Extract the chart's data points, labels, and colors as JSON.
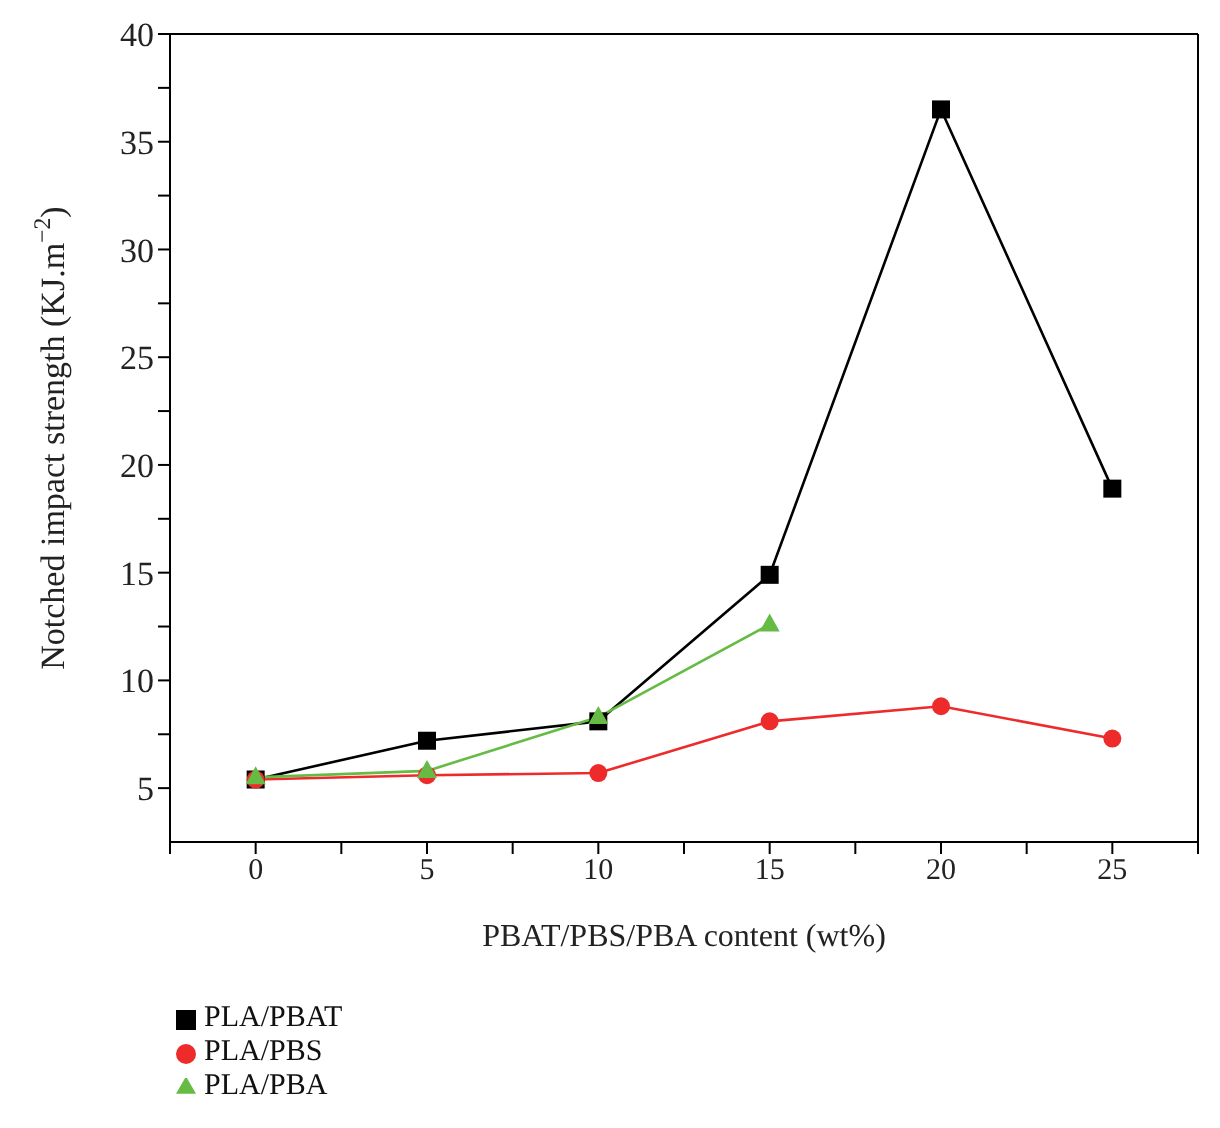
{
  "chart_data": {
    "type": "line",
    "xlabel": "PBAT/PBS/PBA content (wt%)",
    "ylabel": "Notched impact strength (KJ.m$^{−2}$)",
    "x": [
      0,
      5,
      10,
      15,
      20,
      25
    ],
    "series": [
      {
        "name": "PLA/PBAT",
        "color": "#000000",
        "marker": "square",
        "values": [
          5.4,
          7.2,
          8.1,
          14.9,
          36.5,
          18.9
        ]
      },
      {
        "name": "PLA/PBS",
        "color": "#ee2b2b",
        "marker": "circle",
        "values": [
          5.4,
          5.6,
          5.7,
          8.1,
          8.8,
          7.3
        ]
      },
      {
        "name": "PLA/PBA",
        "color": "#66bb44",
        "marker": "triangle",
        "values": [
          5.5,
          5.8,
          8.3,
          12.6,
          null,
          null
        ]
      }
    ],
    "xlim": [
      -2.5,
      27.5
    ],
    "xticks": [
      {
        "value": -2.5,
        "label": null
      },
      0,
      {
        "value": 2.5,
        "label": null
      },
      5,
      {
        "value": 7.5,
        "label": null
      },
      10,
      {
        "value": 12.5,
        "label": null
      },
      15,
      {
        "value": 17.5,
        "label": null
      },
      20,
      {
        "value": 22.5,
        "label": null
      },
      25,
      {
        "value": 27.5,
        "label": null
      }
    ],
    "ylim": [
      2.5,
      40
    ],
    "yticks": [
      5,
      {
        "value": 7.5,
        "label": null
      },
      10,
      {
        "value": 12.5,
        "label": null
      },
      15,
      {
        "value": 17.5,
        "label": null
      },
      20,
      {
        "value": 22.5,
        "label": null
      },
      25,
      {
        "value": 27.5,
        "label": null
      },
      30,
      {
        "value": 32.5,
        "label": null
      },
      35,
      {
        "value": 37.5,
        "label": null
      },
      40
    ],
    "legend": "bottom left",
    "grid": false,
    "line_style": "solid"
  }
}
